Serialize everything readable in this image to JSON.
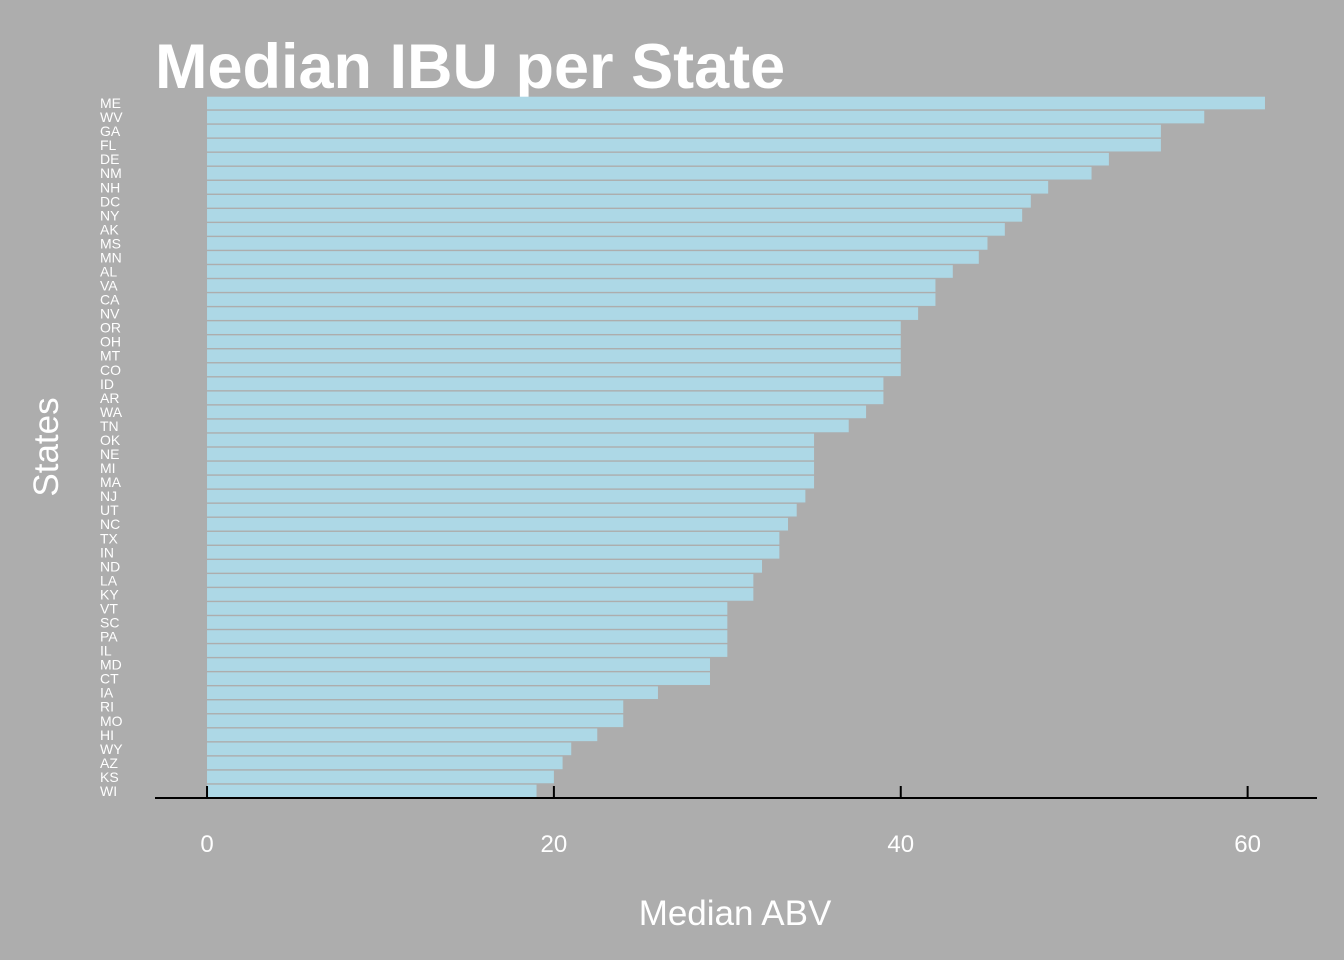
{
  "chart_data": {
    "type": "bar",
    "orientation": "horizontal",
    "title": "Median IBU per State",
    "xlabel": "Median ABV",
    "ylabel": "States",
    "xlim": [
      -3,
      64
    ],
    "xticks": [
      0,
      20,
      40,
      60
    ],
    "grid": false,
    "legend": "none",
    "bar_color": "#add8e6",
    "categories": [
      "ME",
      "WV",
      "GA",
      "FL",
      "DE",
      "NM",
      "NH",
      "DC",
      "NY",
      "AK",
      "MS",
      "MN",
      "AL",
      "VA",
      "CA",
      "NV",
      "OR",
      "OH",
      "MT",
      "CO",
      "ID",
      "AR",
      "WA",
      "TN",
      "OK",
      "NE",
      "MI",
      "MA",
      "NJ",
      "UT",
      "NC",
      "TX",
      "IN",
      "ND",
      "LA",
      "KY",
      "VT",
      "SC",
      "PA",
      "IL",
      "MD",
      "CT",
      "IA",
      "RI",
      "MO",
      "HI",
      "WY",
      "AZ",
      "KS",
      "WI"
    ],
    "values": [
      61,
      57.5,
      55,
      55,
      52,
      51,
      48.5,
      47.5,
      47,
      46,
      45,
      44.5,
      43,
      42,
      42,
      41,
      40,
      40,
      40,
      40,
      39,
      39,
      38,
      37,
      35,
      35,
      35,
      35,
      34.5,
      34,
      33.5,
      33,
      33,
      32,
      31.5,
      31.5,
      30,
      30,
      30,
      30,
      29,
      29,
      26,
      24,
      24,
      22.5,
      21,
      20.5,
      20,
      19
    ]
  },
  "colors": {
    "background": "#adadad",
    "bar": "#add8e6",
    "text": "#ffffff",
    "axis": "#000000"
  }
}
